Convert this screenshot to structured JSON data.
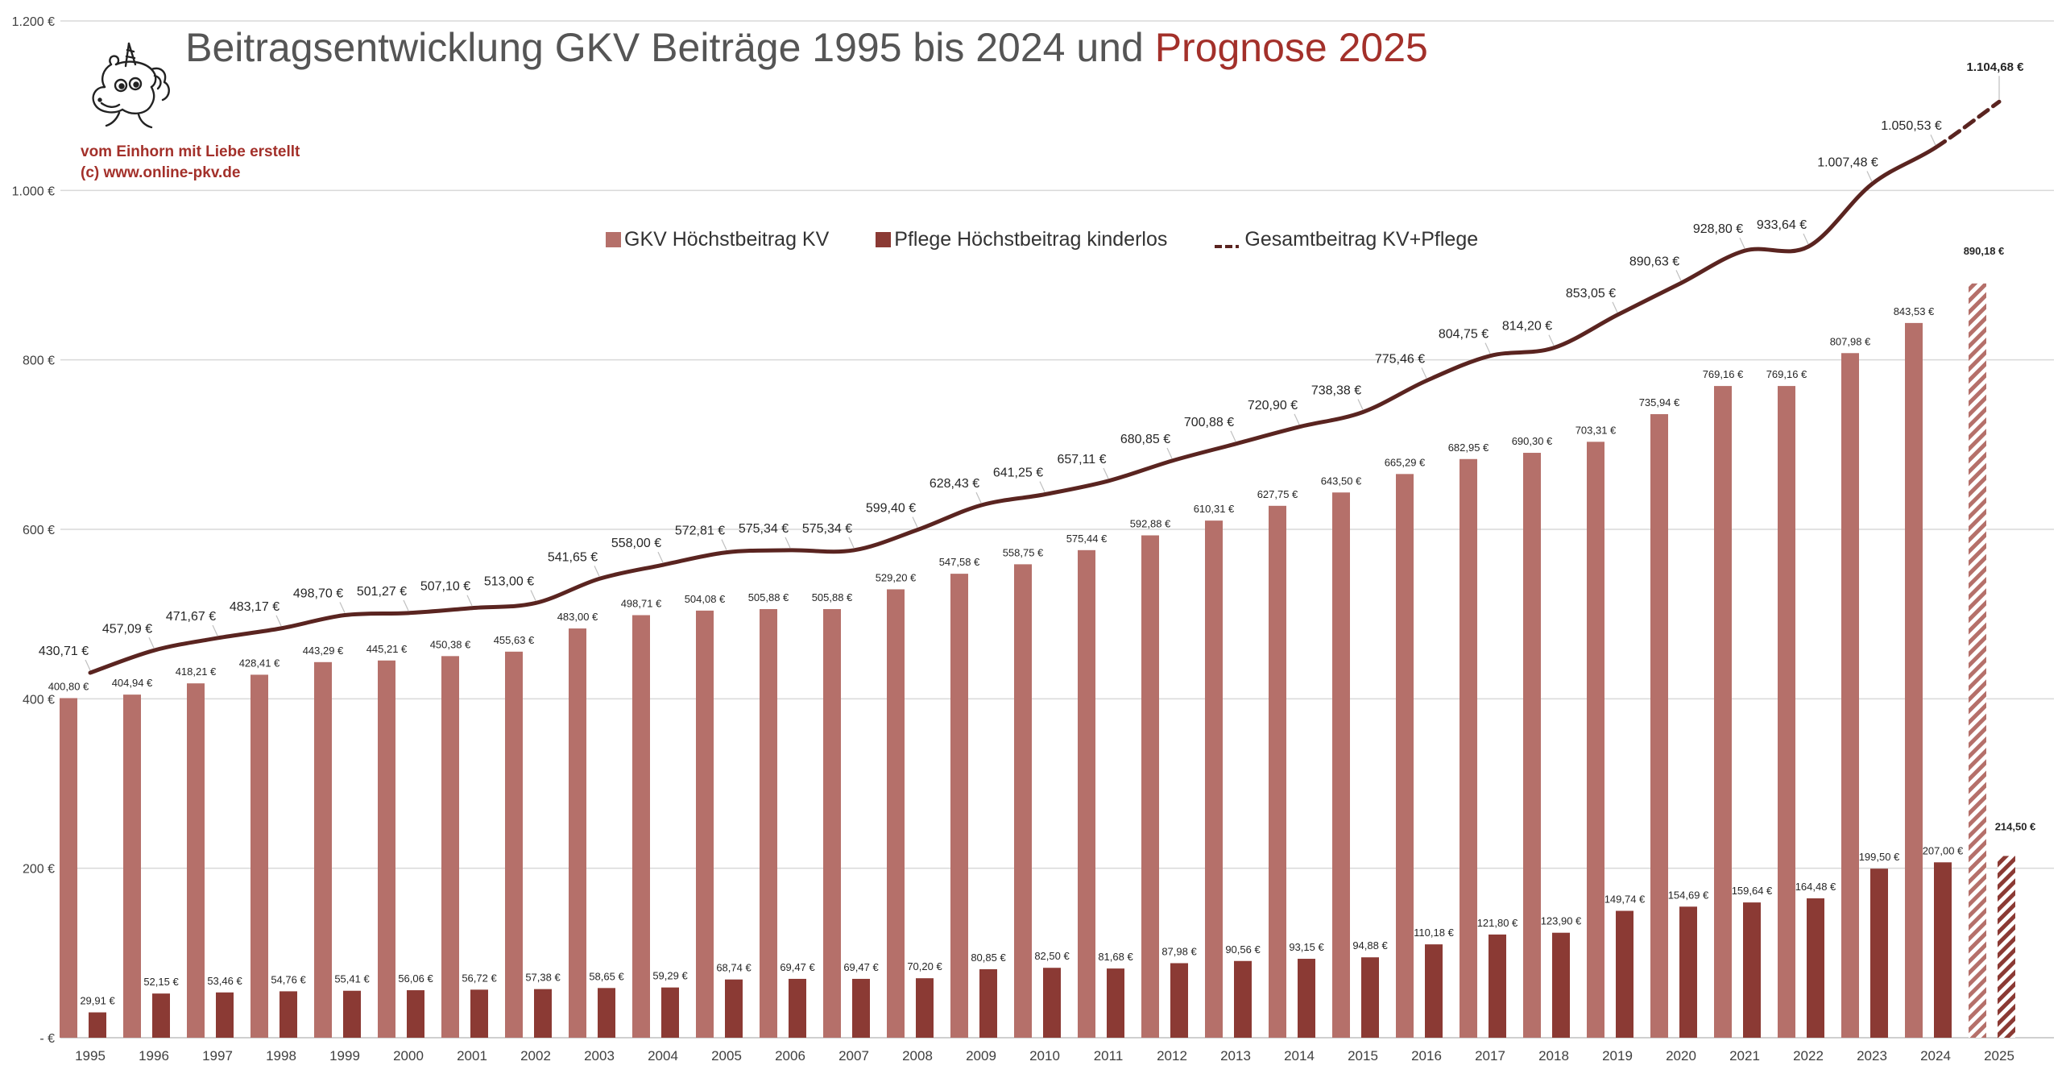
{
  "chart_data": {
    "type": "bar",
    "title_main": "Beitragsentwicklung GKV Beiträge 1995 bis 2024 und",
    "title_highlight": "Prognose 2025",
    "branding": {
      "line1": "vom Einhorn mit Liebe erstellt",
      "line2": "(c) www.online-pkv.de"
    },
    "categories": [
      "1995",
      "1996",
      "1997",
      "1998",
      "1999",
      "2000",
      "2001",
      "2002",
      "2003",
      "2004",
      "2005",
      "2006",
      "2007",
      "2008",
      "2009",
      "2010",
      "2011",
      "2012",
      "2013",
      "2014",
      "2015",
      "2016",
      "2017",
      "2018",
      "2019",
      "2020",
      "2021",
      "2022",
      "2023",
      "2024",
      "2025"
    ],
    "ylim": [
      0,
      1200
    ],
    "y_ticks": [
      {
        "value": 0,
        "label": "- €"
      },
      {
        "value": 200,
        "label": "200 €"
      },
      {
        "value": 400,
        "label": "400 €"
      },
      {
        "value": 600,
        "label": "600 €"
      },
      {
        "value": 800,
        "label": "800 €"
      },
      {
        "value": 1000,
        "label": "1.000 €"
      },
      {
        "value": 1200,
        "label": "1.200 €"
      }
    ],
    "grid": true,
    "legend_position": "top-center",
    "series": [
      {
        "name": "GKV Höchstbeitrag KV",
        "kind": "bar",
        "color": "#b5706a",
        "values": [
          400.8,
          404.94,
          418.21,
          428.41,
          443.29,
          445.21,
          450.38,
          455.63,
          483.0,
          498.71,
          504.08,
          505.88,
          505.88,
          529.2,
          547.58,
          558.75,
          575.44,
          592.88,
          610.31,
          627.75,
          643.5,
          665.29,
          682.95,
          690.3,
          703.31,
          735.94,
          769.16,
          769.16,
          807.98,
          843.53,
          890.18
        ],
        "labels": [
          "400,80 €",
          "404,94 €",
          "418,21 €",
          "428,41 €",
          "443,29 €",
          "445,21 €",
          "450,38 €",
          "455,63 €",
          "483,00 €",
          "498,71 €",
          "504,08 €",
          "505,88 €",
          "505,88 €",
          "529,20 €",
          "547,58 €",
          "558,75 €",
          "575,44 €",
          "592,88 €",
          "610,31 €",
          "627,75 €",
          "643,50 €",
          "665,29 €",
          "682,95 €",
          "690,30 €",
          "703,31 €",
          "735,94 €",
          "769,16 €",
          "769,16 €",
          "807,98 €",
          "843,53 €",
          "890,18 €"
        ]
      },
      {
        "name": "Pflege Höchstbeitrag kinderlos",
        "kind": "bar",
        "color": "#8b3a34",
        "values": [
          29.91,
          52.15,
          53.46,
          54.76,
          55.41,
          56.06,
          56.72,
          57.38,
          58.65,
          59.29,
          68.74,
          69.47,
          69.47,
          70.2,
          80.85,
          82.5,
          81.68,
          87.98,
          90.56,
          93.15,
          94.88,
          110.18,
          121.8,
          123.9,
          149.74,
          154.69,
          159.64,
          164.48,
          199.5,
          207.0,
          214.5
        ],
        "labels": [
          "29,91 €",
          "52,15 €",
          "53,46 €",
          "54,76 €",
          "55,41 €",
          "56,06 €",
          "56,72 €",
          "57,38 €",
          "58,65 €",
          "59,29 €",
          "68,74 €",
          "69,47 €",
          "69,47 €",
          "70,20 €",
          "80,85 €",
          "82,50 €",
          "81,68 €",
          "87,98 €",
          "90,56 €",
          "93,15 €",
          "94,88 €",
          "110,18 €",
          "121,80 €",
          "123,90 €",
          "149,74 €",
          "154,69 €",
          "159,64 €",
          "164,48 €",
          "199,50 €",
          "207,00 €",
          "214,50 €"
        ]
      },
      {
        "name": "Gesamtbeitrag KV+Pflege",
        "kind": "line",
        "color": "#5a2420",
        "values": [
          430.71,
          457.09,
          471.67,
          483.17,
          498.7,
          501.27,
          507.1,
          513.0,
          541.65,
          558.0,
          572.81,
          575.34,
          575.34,
          599.4,
          628.43,
          641.25,
          657.11,
          680.85,
          700.88,
          720.9,
          738.38,
          775.46,
          804.75,
          814.2,
          853.05,
          890.63,
          928.8,
          933.64,
          1007.48,
          1050.53,
          1104.68
        ],
        "labels": [
          "430,71 €",
          "457,09 €",
          "471,67 €",
          "483,17 €",
          "498,70 €",
          "501,27 €",
          "507,10 €",
          "513,00 €",
          "541,65 €",
          "558,00 €",
          "572,81 €",
          "575,34 €",
          "575,34 €",
          "599,40 €",
          "628,43 €",
          "641,25 €",
          "657,11 €",
          "680,85 €",
          "700,88 €",
          "720,90 €",
          "738,38 €",
          "775,46 €",
          "804,75 €",
          "814,20 €",
          "853,05 €",
          "890,63 €",
          "928,80 €",
          "933,64 €",
          "1.007,48 €",
          "1.050,53 €",
          "1.104,68 €"
        ]
      }
    ],
    "forecast_category": "2025"
  }
}
